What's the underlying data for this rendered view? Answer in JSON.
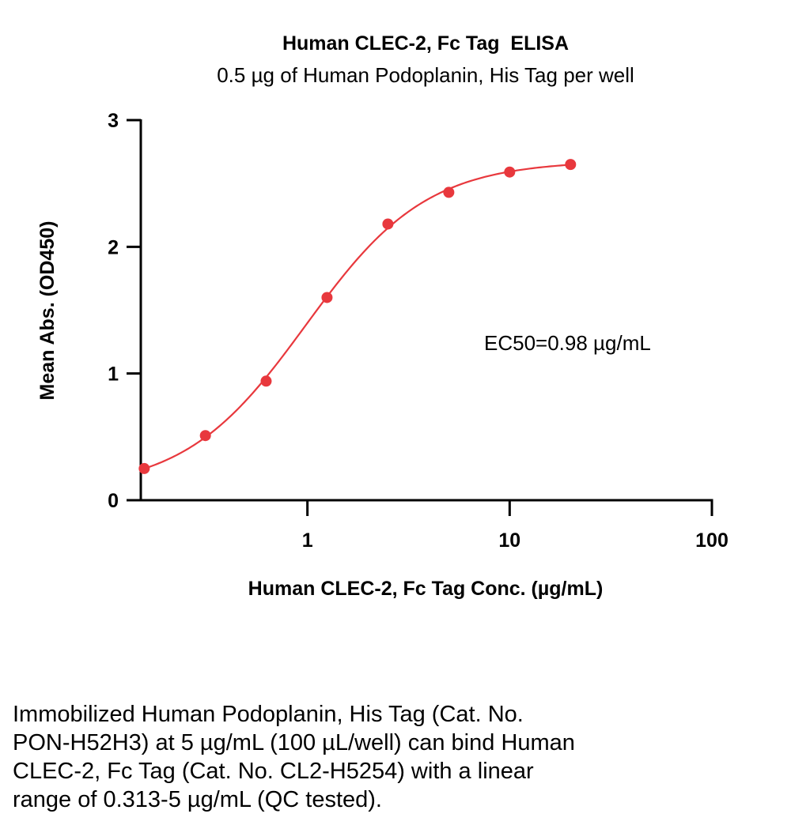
{
  "chart_data": {
    "type": "scatter",
    "title": "Human CLEC-2, Fc Tag  ELISA",
    "subtitle": "0.5 µg of Human Podoplanin, His Tag per well",
    "xlabel": "Human CLEC-2, Fc Tag Conc. (µg/mL)",
    "ylabel": "Mean Abs. (OD450)",
    "x_scale": "log",
    "xlim": [
      0.15,
      100
    ],
    "ylim": [
      0,
      3
    ],
    "x_ticks": [
      1,
      10,
      100
    ],
    "x_tick_labels": [
      "1",
      "10",
      "100"
    ],
    "y_ticks": [
      0,
      1,
      2,
      3
    ],
    "y_tick_labels": [
      "0",
      "1",
      "2",
      "3"
    ],
    "grid": false,
    "series": [
      {
        "x": [
          0.156,
          0.313,
          0.625,
          1.25,
          2.5,
          5,
          10,
          20
        ],
        "y": [
          0.25,
          0.51,
          0.94,
          1.6,
          2.18,
          2.43,
          2.59,
          2.65
        ],
        "color": "#e8383d"
      }
    ],
    "annotation": "EC50=0.98 µg/mL"
  },
  "caption": {
    "lines": [
      "Immobilized Human Podoplanin, His Tag (Cat. No.",
      "PON-H52H3) at 5 µg/mL (100 µL/well) can bind Human",
      "CLEC-2, Fc Tag (Cat. No. CL2-H5254) with a linear",
      "range of 0.313-5 µg/mL (QC tested)."
    ]
  }
}
